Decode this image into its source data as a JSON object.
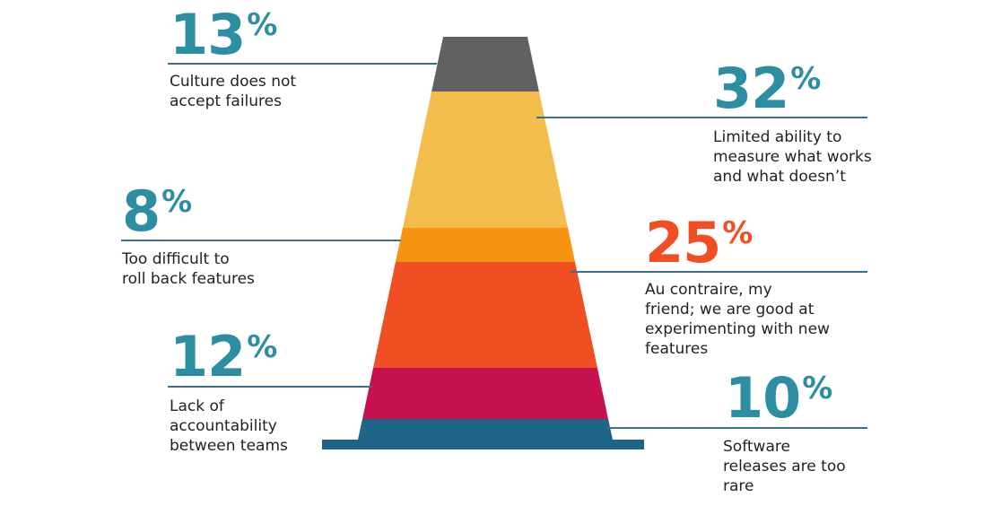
{
  "chart_data": {
    "type": "bar",
    "categories": [
      "Culture does not accept failures",
      "Limited ability to measure what works and what doesn’t",
      "Too difficult to roll back features",
      "Au contraire, my friend; we are good at experimenting with new features",
      "Lack of accountability between teams",
      "Software releases are too rare"
    ],
    "values": [
      13,
      32,
      8,
      25,
      12,
      10
    ],
    "unit": "%",
    "title": "",
    "xlabel": "",
    "ylabel": ""
  },
  "colors": {
    "teal": "#2d8ea3",
    "orange_red": "#f04e23",
    "rule": "#3a6f8d",
    "segments": [
      "#616161",
      "#f2bd4b",
      "#f6940f",
      "#f04e23",
      "#c8124f",
      "#1d6486"
    ]
  },
  "callouts": [
    {
      "value": "13",
      "sign": "%",
      "lines": [
        "Culture does not",
        "accept failures"
      ],
      "color": "#2d8ea3"
    },
    {
      "value": "32",
      "sign": "%",
      "lines": [
        "Limited ability to",
        "measure what works",
        "and what doesn’t"
      ],
      "color": "#2d8ea3"
    },
    {
      "value": "8",
      "sign": "%",
      "lines": [
        "Too difficult to",
        "roll back features"
      ],
      "color": "#2d8ea3"
    },
    {
      "value": "25",
      "sign": "%",
      "lines": [
        "Au contraire, my",
        "friend; we are good at",
        "experimenting with new",
        "features"
      ],
      "color": "#f04e23"
    },
    {
      "value": "12",
      "sign": "%",
      "lines": [
        "Lack of",
        "accountability",
        "between teams"
      ],
      "color": "#2d8ea3"
    },
    {
      "value": "10",
      "sign": "%",
      "lines": [
        "Software",
        "releases are too",
        "rare"
      ],
      "color": "#2d8ea3"
    }
  ]
}
